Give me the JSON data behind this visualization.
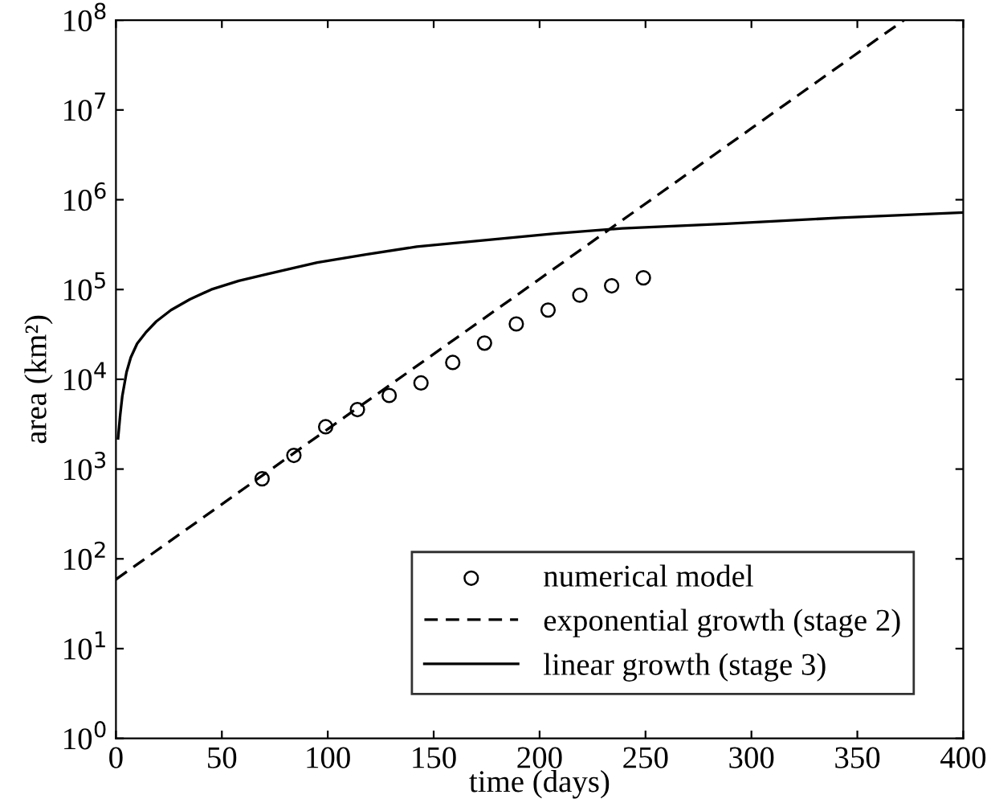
{
  "chart_data": {
    "type": "line",
    "xlabel": "time (days)",
    "ylabel": "area (km²)",
    "log": "y",
    "grid": false,
    "legend": "bottom right",
    "xlim": [
      0,
      400
    ],
    "xticks": [
      0,
      50,
      100,
      150,
      200,
      250,
      300,
      350,
      400
    ],
    "ylim": [
      1,
      100000000
    ],
    "yticks": [
      {
        "value": 1,
        "label": "10$^{0}$"
      },
      {
        "value": 10,
        "label": "10$^{1}$"
      },
      {
        "value": 100,
        "label": "10$^{2}$"
      },
      {
        "value": 1000,
        "label": "10$^{3}$"
      },
      {
        "value": 10000,
        "label": "10$^{4}$"
      },
      {
        "value": 100000,
        "label": "10$^{5}$"
      },
      {
        "value": 1000000,
        "label": "10$^{6}$"
      },
      {
        "value": 10000000,
        "label": "10$^{7}$"
      },
      {
        "value": 100000000,
        "label": "10$^{8}$"
      }
    ],
    "series": [
      {
        "name": "numerical model",
        "type": "scatter",
        "marker": "circle",
        "color": "#000000",
        "x": [
          69,
          84,
          99,
          114,
          129,
          144,
          159,
          174,
          189,
          204,
          219,
          234,
          249
        ],
        "values": [
          780,
          1420,
          2960,
          4600,
          6600,
          9100,
          15400,
          25300,
          41400,
          59000,
          86500,
          110000,
          135000
        ]
      },
      {
        "name": "exponential growth (stage 2)",
        "line_style": "dashed",
        "color": "#000000",
        "x": [
          0,
          100,
          200,
          300,
          372
        ],
        "values": [
          59,
          2790,
          131000,
          6240000,
          100000000
        ]
      },
      {
        "name": "linear growth (stage 3)",
        "line_style": "solid",
        "color": "#000000",
        "x": [
          1,
          2,
          3,
          5,
          7,
          10,
          14,
          19,
          26,
          35,
          45,
          58,
          72,
          95,
          118,
          142,
          166,
          207,
          239,
          288,
          342,
          400
        ],
        "values": [
          2200,
          4000,
          6500,
          12000,
          17500,
          25000,
          33000,
          44000,
          59000,
          78000,
          100000,
          125000,
          150000,
          200000,
          245000,
          300000,
          340000,
          420000,
          480000,
          540000,
          630000,
          720000
        ]
      }
    ]
  }
}
